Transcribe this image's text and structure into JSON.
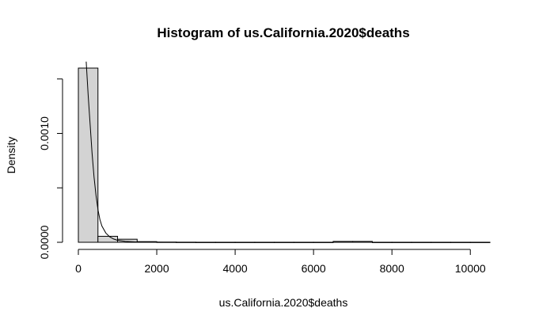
{
  "chart_data": {
    "type": "bar",
    "title": "Histogram of us.California.2020$deaths",
    "xlabel": "us.California.2020$deaths",
    "ylabel": "Density",
    "xlim": [
      0,
      10500
    ],
    "ylim": [
      0,
      0.0016
    ],
    "x_ticks": [
      0,
      2000,
      4000,
      6000,
      8000,
      10000
    ],
    "x_tick_labels": [
      "0",
      "2000",
      "4000",
      "6000",
      "8000",
      "10000"
    ],
    "y_ticks": [
      0,
      0.0005,
      0.001,
      0.0015
    ],
    "y_tick_labels": [
      "0.0000",
      "",
      "0.0010",
      ""
    ],
    "bins": [
      {
        "start": 0,
        "end": 500,
        "density": 0.0016
      },
      {
        "start": 500,
        "end": 1000,
        "density": 5.5e-05
      },
      {
        "start": 1000,
        "end": 1500,
        "density": 2.8e-05
      },
      {
        "start": 1500,
        "end": 2000,
        "density": 6e-06
      },
      {
        "start": 2000,
        "end": 2500,
        "density": 2e-06
      },
      {
        "start": 2500,
        "end": 3000,
        "density": 1e-06
      },
      {
        "start": 3000,
        "end": 3500,
        "density": 5e-07
      },
      {
        "start": 3500,
        "end": 4000,
        "density": 5e-07
      },
      {
        "start": 4000,
        "end": 4500,
        "density": 5e-07
      },
      {
        "start": 4500,
        "end": 5000,
        "density": 5e-07
      },
      {
        "start": 5000,
        "end": 5500,
        "density": 5e-07
      },
      {
        "start": 5500,
        "end": 6000,
        "density": 5e-07
      },
      {
        "start": 6000,
        "end": 6500,
        "density": 5e-07
      },
      {
        "start": 6500,
        "end": 7000,
        "density": 8e-06
      },
      {
        "start": 7000,
        "end": 7500,
        "density": 8e-06
      },
      {
        "start": 7500,
        "end": 8000,
        "density": 5e-07
      },
      {
        "start": 8000,
        "end": 8500,
        "density": 5e-07
      },
      {
        "start": 8500,
        "end": 9000,
        "density": 5e-07
      },
      {
        "start": 9000,
        "end": 9500,
        "density": 5e-07
      },
      {
        "start": 9500,
        "end": 10000,
        "density": 5e-07
      },
      {
        "start": 10000,
        "end": 10500,
        "density": 5e-07
      }
    ],
    "density_curve": {
      "x": [
        200,
        250,
        300,
        350,
        400,
        450,
        500,
        550,
        600,
        700,
        800,
        900,
        1000,
        1200,
        1500,
        1800,
        2200
      ],
      "y": [
        0.00166,
        0.00135,
        0.00108,
        0.00082,
        0.0006,
        0.00043,
        0.0003,
        0.00021,
        0.00015,
        8.5e-05,
        5e-05,
        3e-05,
        1.8e-05,
        8e-06,
        3e-06,
        1e-06,
        3e-07
      ]
    }
  }
}
